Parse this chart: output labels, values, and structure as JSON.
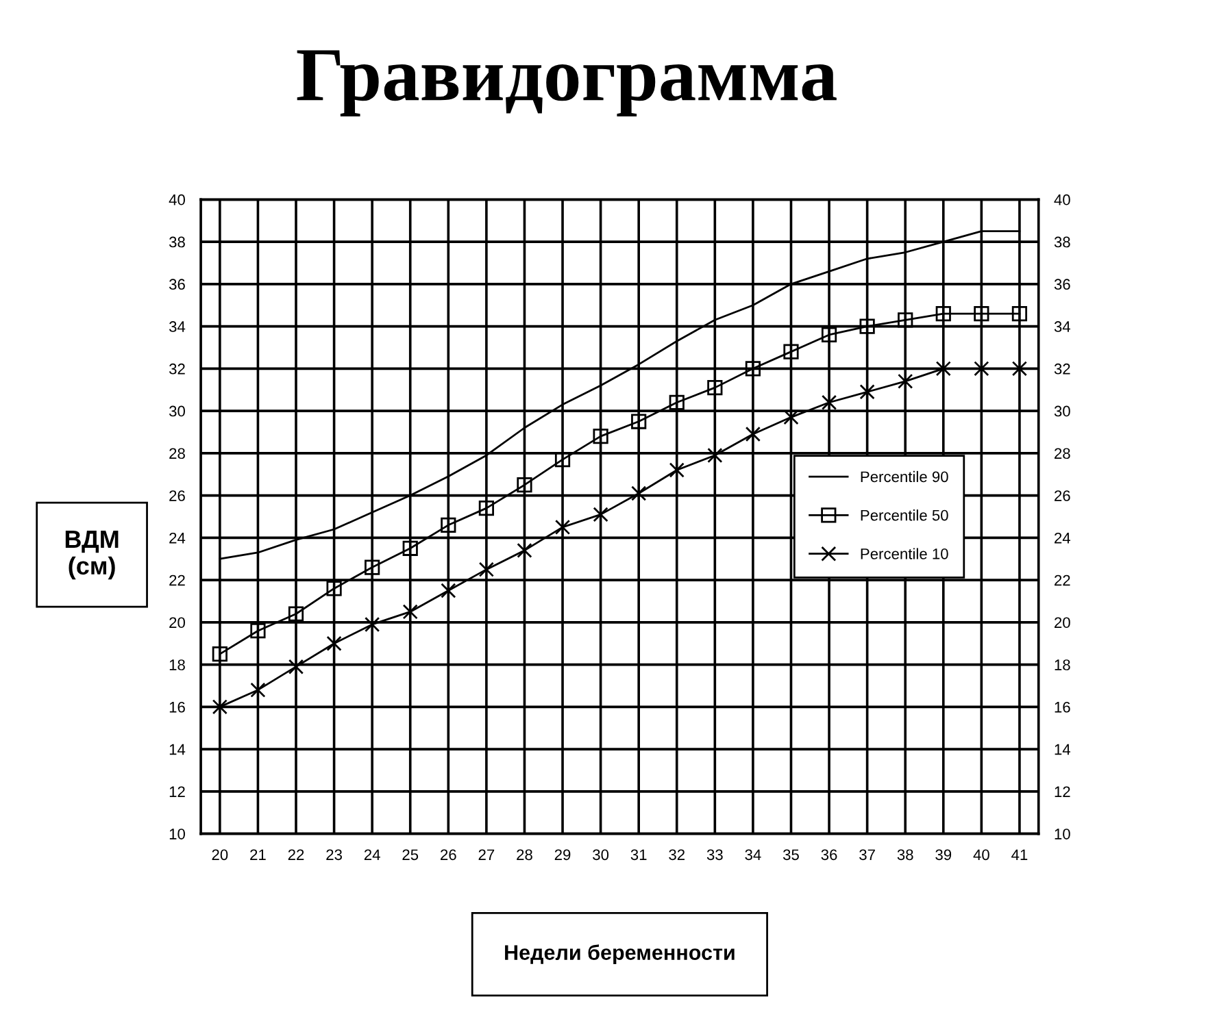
{
  "chart_data": {
    "type": "line",
    "title": "Гравидограмма",
    "xlabel": "Недели беременности",
    "ylabel": "ВДМ\n(см)",
    "x": [
      20,
      21,
      22,
      23,
      24,
      25,
      26,
      27,
      28,
      29,
      30,
      31,
      32,
      33,
      34,
      35,
      36,
      37,
      38,
      39,
      40,
      41
    ],
    "series": [
      {
        "name": "Percentile 90",
        "color": "#000000",
        "marker": "none",
        "values": [
          23,
          23.3,
          23.9,
          24.4,
          25.2,
          26,
          26.9,
          27.9,
          29.2,
          30.3,
          31.2,
          32.2,
          33.3,
          34.3,
          35,
          36,
          36.6,
          37.2,
          37.5,
          38,
          38.5,
          38.5
        ]
      },
      {
        "name": "Percentile 50",
        "color": "#000000",
        "marker": "square",
        "values": [
          18.5,
          19.6,
          20.4,
          21.6,
          22.6,
          23.5,
          24.6,
          25.4,
          26.5,
          27.7,
          28.8,
          29.5,
          30.4,
          31.1,
          32,
          32.8,
          33.6,
          34,
          34.3,
          34.6,
          34.6,
          34.6
        ]
      },
      {
        "name": "Percentile 10",
        "color": "#000000",
        "marker": "cross",
        "values": [
          16,
          16.8,
          17.9,
          19,
          19.9,
          20.5,
          21.5,
          22.5,
          23.4,
          24.5,
          25.1,
          26.1,
          27.2,
          27.9,
          28.9,
          29.7,
          30.4,
          30.9,
          31.4,
          32,
          32,
          32
        ]
      }
    ],
    "xlim": [
      19.5,
      41.5
    ],
    "xticks": [
      20,
      21,
      22,
      23,
      24,
      25,
      26,
      27,
      28,
      29,
      30,
      31,
      32,
      33,
      34,
      35,
      36,
      37,
      38,
      39,
      40,
      41
    ],
    "ylim": [
      10,
      40
    ],
    "yticks": [
      10,
      12,
      14,
      16,
      18,
      20,
      22,
      24,
      26,
      28,
      30,
      32,
      34,
      36,
      38,
      40
    ],
    "y2lim": [
      10,
      40
    ],
    "y2ticks": [
      10,
      12,
      14,
      16,
      18,
      20,
      22,
      24,
      26,
      28,
      30,
      32,
      34,
      36,
      38,
      40
    ],
    "grid": true,
    "legend": "right",
    "line_style": "solid"
  }
}
